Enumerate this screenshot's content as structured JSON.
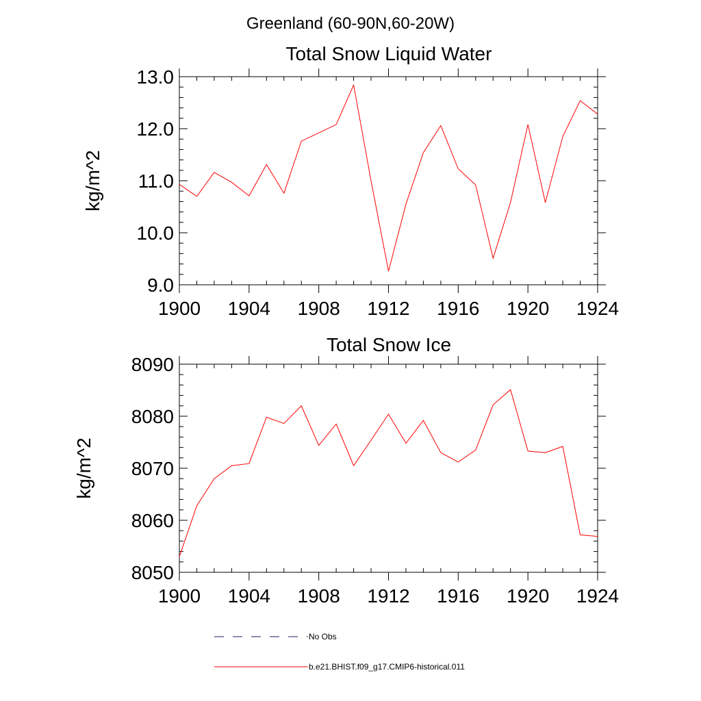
{
  "figure": {
    "title": "Greenland (60-90N,60-20W)"
  },
  "legend": [
    {
      "label": "No Obs",
      "style": "dashed",
      "color": "#1a1a5e"
    },
    {
      "label": "b.e21.BHIST.f09_g17.CMIP6-historical.011",
      "style": "solid",
      "color": "#ff0000"
    }
  ],
  "chart_data": [
    {
      "type": "line",
      "title": "Total Snow Liquid Water",
      "xlabel": "",
      "ylabel": "kg/m^2",
      "xlim": [
        1900,
        1924
      ],
      "ylim": [
        9.0,
        13.0
      ],
      "xticks": [
        "1900",
        "1904",
        "1908",
        "1912",
        "1916",
        "1920",
        "1924"
      ],
      "yticks": [
        "9.0",
        "10.0",
        "11.0",
        "12.0",
        "13.0"
      ],
      "x": [
        1900,
        1901,
        1902,
        1903,
        1904,
        1905,
        1906,
        1907,
        1908,
        1909,
        1910,
        1911,
        1912,
        1913,
        1914,
        1915,
        1916,
        1917,
        1918,
        1919,
        1920,
        1921,
        1922,
        1923,
        1924
      ],
      "series": [
        {
          "name": "b.e21.BHIST.f09_g17.CMIP6-historical.011",
          "color": "#ff0000",
          "values": [
            10.93,
            10.7,
            11.16,
            10.97,
            10.71,
            11.31,
            10.76,
            11.76,
            11.92,
            12.08,
            12.84,
            11.0,
            9.26,
            10.55,
            11.54,
            12.06,
            11.23,
            10.92,
            9.51,
            10.58,
            12.08,
            10.58,
            11.85,
            12.54,
            12.28
          ]
        }
      ]
    },
    {
      "type": "line",
      "title": "Total Snow Ice",
      "xlabel": "",
      "ylabel": "kg/m^2",
      "xlim": [
        1900,
        1924
      ],
      "ylim": [
        8050,
        8090
      ],
      "xticks": [
        "1900",
        "1904",
        "1908",
        "1912",
        "1916",
        "1920",
        "1924"
      ],
      "yticks": [
        "8050",
        "8060",
        "8070",
        "8080",
        "8090"
      ],
      "x": [
        1900,
        1901,
        1902,
        1903,
        1904,
        1905,
        1906,
        1907,
        1908,
        1909,
        1910,
        1911,
        1912,
        1913,
        1914,
        1915,
        1916,
        1917,
        1918,
        1919,
        1920,
        1921,
        1922,
        1923,
        1924
      ],
      "series": [
        {
          "name": "b.e21.BHIST.f09_g17.CMIP6-historical.011",
          "color": "#ff0000",
          "values": [
            8053.0,
            8062.8,
            8068.0,
            8070.5,
            8070.9,
            8079.8,
            8078.6,
            8082.0,
            8074.4,
            8078.5,
            8070.5,
            8075.4,
            8080.4,
            8074.8,
            8079.2,
            8073.0,
            8071.2,
            8073.5,
            8082.2,
            8085.1,
            8073.3,
            8073.0,
            8074.2,
            8057.2,
            8056.9
          ]
        }
      ]
    }
  ]
}
